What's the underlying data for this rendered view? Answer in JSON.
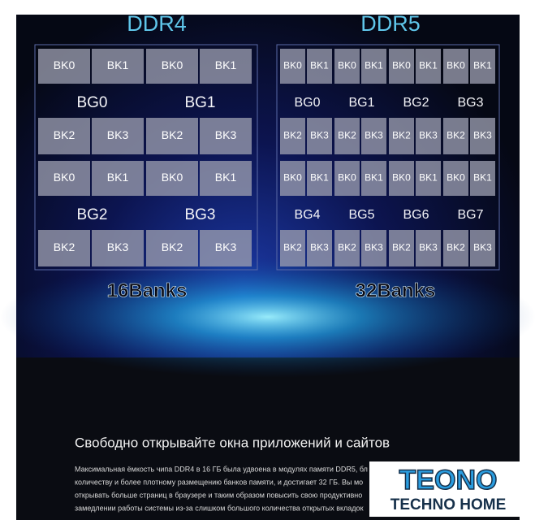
{
  "panels": [
    {
      "title": "DDR4",
      "total": "16Banks",
      "groups": [
        {
          "label": "BG0",
          "banks": [
            "BK0",
            "BK1",
            "BK2",
            "BK3"
          ]
        },
        {
          "label": "BG1",
          "banks": [
            "BK0",
            "BK1",
            "BK2",
            "BK3"
          ]
        },
        {
          "label": "BG2",
          "banks": [
            "BK0",
            "BK1",
            "BK2",
            "BK3"
          ]
        },
        {
          "label": "BG3",
          "banks": [
            "BK0",
            "BK1",
            "BK2",
            "BK3"
          ]
        }
      ]
    },
    {
      "title": "DDR5",
      "total": "32Banks",
      "groups": [
        {
          "label": "BG0",
          "banks": [
            "BK0",
            "BK1",
            "BK2",
            "BK3"
          ]
        },
        {
          "label": "BG1",
          "banks": [
            "BK0",
            "BK1",
            "BK2",
            "BK3"
          ]
        },
        {
          "label": "BG2",
          "banks": [
            "BK0",
            "BK1",
            "BK2",
            "BK3"
          ]
        },
        {
          "label": "BG3",
          "banks": [
            "BK0",
            "BK1",
            "BK2",
            "BK3"
          ]
        },
        {
          "label": "BG4",
          "banks": [
            "BK0",
            "BK1",
            "BK2",
            "BK3"
          ]
        },
        {
          "label": "BG5",
          "banks": [
            "BK0",
            "BK1",
            "BK2",
            "BK3"
          ]
        },
        {
          "label": "BG6",
          "banks": [
            "BK0",
            "BK1",
            "BK2",
            "BK3"
          ]
        },
        {
          "label": "BG7",
          "banks": [
            "BK0",
            "BK1",
            "BK2",
            "BK3"
          ]
        }
      ]
    }
  ],
  "article": {
    "heading": "Свободно открывайте окна приложений и сайтов",
    "lines": [
      "Максимальная ёмкость чипа DDR4 в 16 ГБ была удвоена в модулях памяти DDR5, бл",
      "количеству и более плотному размещению банков памяти, и достигает 32 ГБ. Вы мо",
      "открывать больше страниц в браузере и таким образом повысить свою продуктивно",
      "замедлении работы системы из-за слишком большого количества открытых вкладок"
    ]
  },
  "logo": {
    "brand": "TEONO",
    "sub": "TECHNO HOME"
  }
}
